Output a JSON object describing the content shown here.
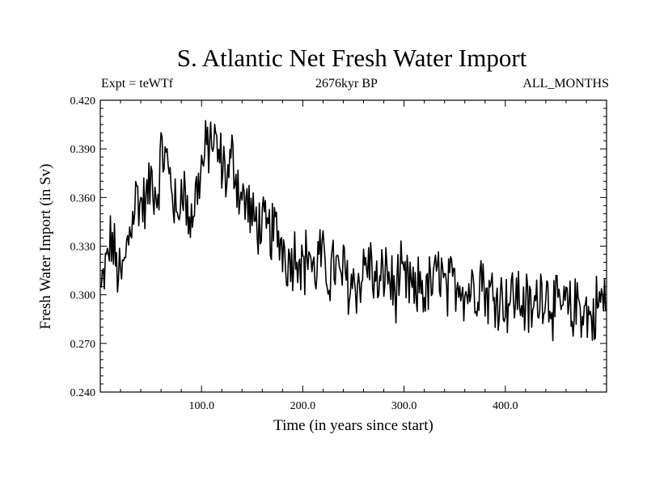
{
  "chart_data": {
    "type": "line",
    "title": "S. Atlantic Net Fresh Water Import",
    "subtitle_left": "Expt = teWTf",
    "subtitle_center": "2676kyr BP",
    "subtitle_right": "ALL_MONTHS",
    "xlabel": "Time (in years since start)",
    "ylabel": "Fresh Water Import (in Sv)",
    "xlim": [
      0,
      500
    ],
    "ylim": [
      0.24,
      0.42
    ],
    "x_ticks": [
      100,
      200,
      300,
      400
    ],
    "x_tick_labels": [
      "100.0",
      "200.0",
      "300.0",
      "400.0"
    ],
    "y_ticks": [
      0.24,
      0.27,
      0.3,
      0.33,
      0.36,
      0.39,
      0.42
    ],
    "y_tick_labels": [
      "0.240",
      "0.270",
      "0.300",
      "0.330",
      "0.360",
      "0.390",
      "0.420"
    ],
    "series": [
      {
        "name": "S. Atlantic Net Fresh Water Import",
        "x_start": 1,
        "x_step": 5,
        "values": [
          0.301,
          0.318,
          0.335,
          0.318,
          0.308,
          0.328,
          0.348,
          0.362,
          0.355,
          0.358,
          0.372,
          0.36,
          0.39,
          0.38,
          0.368,
          0.342,
          0.375,
          0.348,
          0.348,
          0.368,
          0.38,
          0.392,
          0.396,
          0.386,
          0.38,
          0.372,
          0.386,
          0.368,
          0.358,
          0.356,
          0.344,
          0.345,
          0.34,
          0.338,
          0.34,
          0.336,
          0.33,
          0.32,
          0.325,
          0.328,
          0.316,
          0.33,
          0.31,
          0.325,
          0.318,
          0.312,
          0.32,
          0.31,
          0.315,
          0.305,
          0.31,
          0.305,
          0.318,
          0.32,
          0.308,
          0.302,
          0.318,
          0.31,
          0.3,
          0.312,
          0.305,
          0.308,
          0.295,
          0.31,
          0.3,
          0.306,
          0.308,
          0.318,
          0.3,
          0.305,
          0.308,
          0.31,
          0.3,
          0.306,
          0.302,
          0.315,
          0.3,
          0.3,
          0.302,
          0.298,
          0.297,
          0.298,
          0.3,
          0.296,
          0.294,
          0.288,
          0.296,
          0.304,
          0.302,
          0.295,
          0.29,
          0.294,
          0.292,
          0.286,
          0.296,
          0.292,
          0.288,
          0.284,
          0.295,
          0.296
        ],
        "noise_amplitude": 0.018
      }
    ]
  }
}
